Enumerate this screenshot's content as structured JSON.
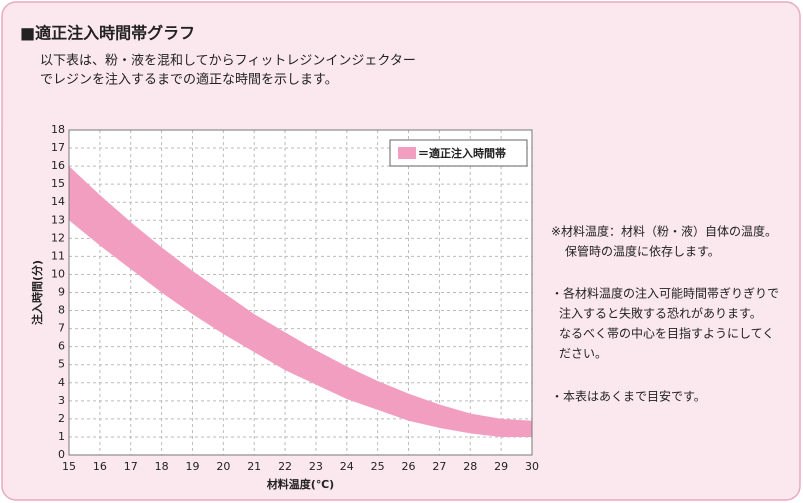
{
  "header": {
    "title": "■適正注入時間帯グラフ",
    "lines": [
      "以下表は、粉・液を混和してからフィットレジンインジェクター",
      "でレジンを注入するまでの適正な時間を示します。"
    ]
  },
  "notes": [
    "※材料温度：材料（粉・液）自体の温度。",
    "保管時の温度に依存します。",
    "・各材料温度の注入可能時間帯ぎりぎりで",
    "注入すると失敗する恐れがあります。",
    "なるべく帯の中心を目指すようにしてく",
    "ださい。",
    "・本表はあくまで目安です。"
  ],
  "chart_data": {
    "type": "band",
    "legend": "＝適正注入時間帯",
    "color": "#f29ec0",
    "x_label": "材料温度(℃)",
    "y_label": "注入時間(分)",
    "x": [
      15,
      16,
      17,
      18,
      19,
      20,
      21,
      22,
      23,
      24,
      25,
      26,
      27,
      28,
      29,
      30
    ],
    "upper": [
      16,
      14.4,
      12.9,
      11.5,
      10.2,
      9.0,
      7.8,
      6.8,
      5.8,
      4.9,
      4.1,
      3.4,
      2.8,
      2.3,
      2.0,
      1.9
    ],
    "lower": [
      13,
      11.6,
      10.3,
      9.0,
      7.8,
      6.7,
      5.7,
      4.7,
      3.9,
      3.1,
      2.5,
      1.9,
      1.5,
      1.2,
      1.0,
      1.0
    ],
    "xlim": [
      15,
      30
    ],
    "xticks": [
      15,
      16,
      17,
      18,
      19,
      20,
      21,
      22,
      23,
      24,
      25,
      26,
      27,
      28,
      29,
      30
    ],
    "ylim": [
      0,
      18
    ],
    "yticks": [
      0,
      1,
      2,
      3,
      4,
      5,
      6,
      7,
      8,
      9,
      10,
      11,
      12,
      13,
      14,
      15,
      16,
      17,
      18
    ],
    "grid": true
  }
}
